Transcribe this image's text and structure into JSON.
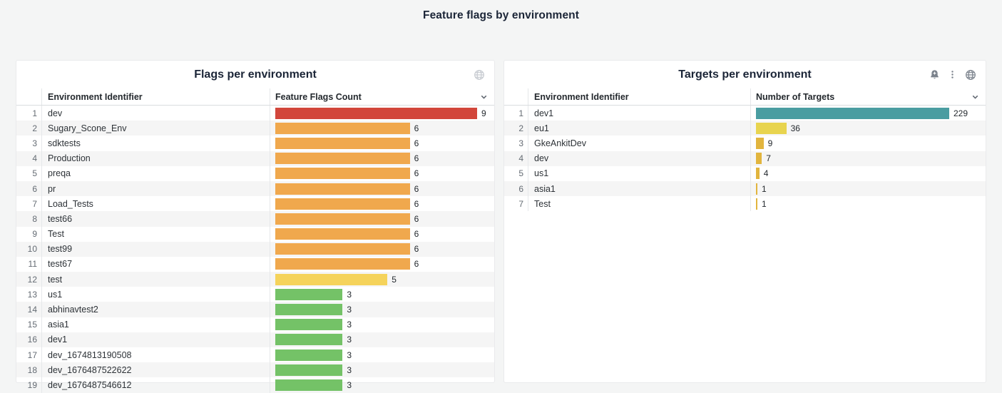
{
  "page": {
    "title": "Feature flags by environment",
    "background_color": "#f4f5f5",
    "panel_background": "#ffffff"
  },
  "panels": [
    {
      "title": "Flags per environment",
      "icons": [
        "globe-icon"
      ],
      "columns": {
        "identifier": "Environment Identifier",
        "value": "Feature Flags Count"
      },
      "scale_max": 9,
      "rows": [
        {
          "num": 1,
          "name": "dev",
          "value": 9,
          "color": "#d2463b"
        },
        {
          "num": 2,
          "name": "Sugary_Scone_Env",
          "value": 6,
          "color": "#f0a84d"
        },
        {
          "num": 3,
          "name": "sdktests",
          "value": 6,
          "color": "#f0a84d"
        },
        {
          "num": 4,
          "name": "Production",
          "value": 6,
          "color": "#f0a84d"
        },
        {
          "num": 5,
          "name": "preqa",
          "value": 6,
          "color": "#f0a84d"
        },
        {
          "num": 6,
          "name": "pr",
          "value": 6,
          "color": "#f0a84d"
        },
        {
          "num": 7,
          "name": "Load_Tests",
          "value": 6,
          "color": "#f0a84d"
        },
        {
          "num": 8,
          "name": "test66",
          "value": 6,
          "color": "#f0a84d"
        },
        {
          "num": 9,
          "name": "Test",
          "value": 6,
          "color": "#f0a84d"
        },
        {
          "num": 10,
          "name": "test99",
          "value": 6,
          "color": "#f0a84d"
        },
        {
          "num": 11,
          "name": "test67",
          "value": 6,
          "color": "#f0a84d"
        },
        {
          "num": 12,
          "name": "test",
          "value": 5,
          "color": "#f5d35b"
        },
        {
          "num": 13,
          "name": "us1",
          "value": 3,
          "color": "#74c267"
        },
        {
          "num": 14,
          "name": "abhinavtest2",
          "value": 3,
          "color": "#74c267"
        },
        {
          "num": 15,
          "name": "asia1",
          "value": 3,
          "color": "#74c267"
        },
        {
          "num": 16,
          "name": "dev1",
          "value": 3,
          "color": "#74c267"
        },
        {
          "num": 17,
          "name": "dev_1674813190508",
          "value": 3,
          "color": "#74c267"
        },
        {
          "num": 18,
          "name": "dev_1676487522622",
          "value": 3,
          "color": "#74c267"
        },
        {
          "num": 19,
          "name": "dev_1676487546612",
          "value": 3,
          "color": "#74c267"
        }
      ]
    },
    {
      "title": "Targets per environment",
      "icons": [
        "bell-plus-icon",
        "kebab-menu-icon",
        "globe-icon"
      ],
      "columns": {
        "identifier": "Environment Identifier",
        "value": "Number of Targets"
      },
      "scale_max": 229,
      "rows": [
        {
          "num": 1,
          "name": "dev1",
          "value": 229,
          "color": "#4a9da1"
        },
        {
          "num": 2,
          "name": "eu1",
          "value": 36,
          "color": "#e8d44f"
        },
        {
          "num": 3,
          "name": "GkeAnkitDev",
          "value": 9,
          "color": "#e2b53e"
        },
        {
          "num": 4,
          "name": "dev",
          "value": 7,
          "color": "#e2b53e"
        },
        {
          "num": 5,
          "name": "us1",
          "value": 4,
          "color": "#e2b53e"
        },
        {
          "num": 6,
          "name": "asia1",
          "value": 1,
          "color": "#e2b53e"
        },
        {
          "num": 7,
          "name": "Test",
          "value": 1,
          "color": "#e2b53e"
        }
      ]
    }
  ],
  "chart_data": [
    {
      "type": "bar",
      "orientation": "horizontal",
      "title": "Flags per environment",
      "xlabel": "Feature Flags Count",
      "ylabel": "Environment Identifier",
      "xlim": [
        0,
        9
      ],
      "categories": [
        "dev",
        "Sugary_Scone_Env",
        "sdktests",
        "Production",
        "preqa",
        "pr",
        "Load_Tests",
        "test66",
        "Test",
        "test99",
        "test67",
        "test",
        "us1",
        "abhinavtest2",
        "asia1",
        "dev1",
        "dev_1674813190508",
        "dev_1676487522622",
        "dev_1676487546612"
      ],
      "values": [
        9,
        6,
        6,
        6,
        6,
        6,
        6,
        6,
        6,
        6,
        6,
        5,
        3,
        3,
        3,
        3,
        3,
        3,
        3
      ]
    },
    {
      "type": "bar",
      "orientation": "horizontal",
      "title": "Targets per environment",
      "xlabel": "Number of Targets",
      "ylabel": "Environment Identifier",
      "xlim": [
        0,
        229
      ],
      "categories": [
        "dev1",
        "eu1",
        "GkeAnkitDev",
        "dev",
        "us1",
        "asia1",
        "Test"
      ],
      "values": [
        229,
        36,
        9,
        7,
        4,
        1,
        1
      ]
    }
  ]
}
